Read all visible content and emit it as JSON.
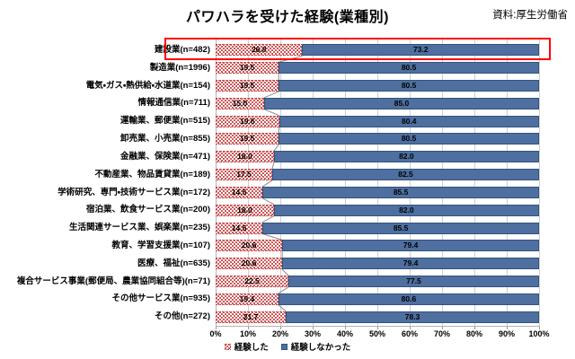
{
  "chart_data": {
    "type": "bar",
    "subtype": "horizontal-stacked-100-percent",
    "title": "パワハラを受けた経験(業種別)",
    "source": "資料:厚生労働省",
    "categories": [
      "建設業(n=482)",
      "製造業(n=1996)",
      "電気・ガス・熱供給・水道業(n=154)",
      "情報通信業(n=711)",
      "運輸業、郵便業(n=515)",
      "卸売業、小売業(n=855)",
      "金融業、保険業(n=471)",
      "不動産業、物品賃貸業(n=189)",
      "学術研究、専門・技術サービス業(n=172)",
      "宿泊業、飲食サービス業(n=200)",
      "生活関連サービス業、娯楽業(n=235)",
      "教育、学習支援業(n=107)",
      "医療、福祉(n=635)",
      "複合サービス事業(郵便局、農業協同組合等)(n=71)",
      "その他サービス業(n=935)",
      "その他(n=272)"
    ],
    "series": [
      {
        "name": "経験した",
        "values": [
          26.8,
          19.5,
          19.5,
          15.0,
          19.6,
          19.5,
          18.0,
          17.5,
          14.5,
          18.0,
          14.5,
          20.6,
          20.6,
          22.5,
          19.4,
          21.7
        ]
      },
      {
        "name": "経験しなかった",
        "values": [
          73.2,
          80.5,
          80.5,
          85.0,
          80.4,
          80.5,
          82.0,
          82.5,
          85.5,
          82.0,
          85.5,
          79.4,
          79.4,
          77.5,
          80.6,
          78.3
        ]
      }
    ],
    "x_ticks": [
      "0%",
      "10%",
      "20%",
      "30%",
      "40%",
      "50%",
      "60%",
      "70%",
      "80%",
      "90%",
      "100%"
    ],
    "xlim": [
      0,
      100
    ],
    "unit": "%",
    "grid": "vertical",
    "legend_position": "bottom",
    "highlighted_category_index": 0,
    "colors": {
      "experienced_pattern": "#c23b3b",
      "not_experienced_fill": "#4e6f9f",
      "not_experienced_border": "#31537e",
      "highlight_box": "#ff0000",
      "gridline": "#cfcfcf",
      "connector_line": "#8c8c8c"
    }
  }
}
